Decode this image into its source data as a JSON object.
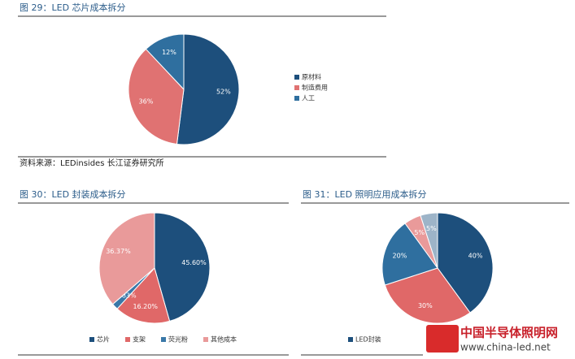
{
  "chart_data": [
    {
      "type": "pie",
      "title": "图 29：LED 芯片成本拆分",
      "categories": [
        "原材料",
        "制造费用",
        "人工"
      ],
      "values": [
        52,
        36,
        12
      ],
      "value_labels": [
        "52%",
        "36%",
        "12%"
      ],
      "colors": [
        "#1d4f7c",
        "#e07272",
        "#2f6f9f"
      ],
      "legend": "right"
    },
    {
      "type": "pie",
      "title": "图 30：LED 封装成本拆分",
      "categories": [
        "芯片",
        "支架",
        "荧光粉",
        "其他成本"
      ],
      "values": [
        45.6,
        16.2,
        1.83,
        36.37
      ],
      "value_labels": [
        "45.60%",
        "16.20%",
        "1.83%",
        "36.37%"
      ],
      "colors": [
        "#1d4f7c",
        "#e06868",
        "#3a78a8",
        "#e99a9a"
      ],
      "legend": "bottom"
    },
    {
      "type": "pie",
      "title": "图 31：LED 照明应用成本拆分",
      "categories": [
        "LED封装",
        null,
        null,
        null,
        null
      ],
      "values": [
        40,
        30,
        20,
        5,
        5
      ],
      "value_labels": [
        "40%",
        "30%",
        "20%",
        "5%",
        "5%"
      ],
      "colors": [
        "#1d4f7c",
        "#e06868",
        "#2f6f9f",
        "#e99a9a",
        "#9db4c8"
      ],
      "legend": "bottom"
    }
  ],
  "source": "资料来源：LEDinsides 长江证券研究所",
  "watermark": {
    "name": "中国半导体照明网",
    "url": "www.china-led.net"
  }
}
